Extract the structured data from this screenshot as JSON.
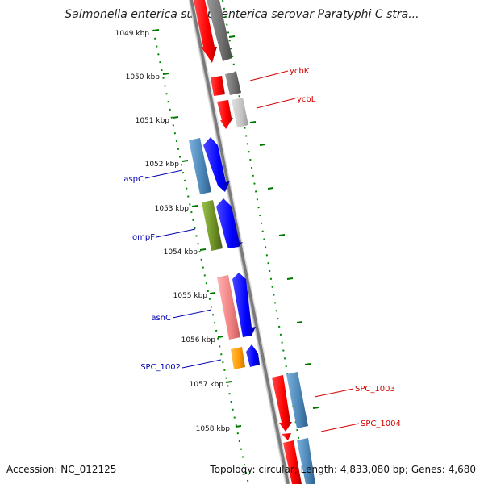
{
  "header": {
    "title": "Salmonella enterica subsp. enterica serovar Paratyphi C stra..."
  },
  "ticks": [
    "1049 kbp",
    "1050 kbp",
    "1051 kbp",
    "1052 kbp",
    "1053 kbp",
    "1054 kbp",
    "1055 kbp",
    "1056 kbp",
    "1057 kbp",
    "1058 kbp"
  ],
  "genes": {
    "ycbK": "ycbK",
    "ycbL": "ycbL",
    "aspC": "aspC",
    "ompF": "ompF",
    "asnC": "asnC",
    "SPC_1002": "SPC_1002",
    "SPC_1003": "SPC_1003",
    "SPC_1004": "SPC_1004"
  },
  "footer": {
    "accession": "Accession: NC_012125",
    "summary": "Topology: circular; Length: 4,833,080 bp; Genes: 4,680"
  },
  "colors": {
    "forward_cds": "#ff0000",
    "reverse_cds": "#0000ff",
    "feature_grey": "#777777",
    "feature_steelblue": "#4a86b8",
    "feature_olive": "#6b8e23",
    "feature_pink": "#f08080",
    "feature_orange": "#ff9900",
    "ruler_dots": "#008800",
    "label_red": "#d40000",
    "label_blue": "#0000b0"
  }
}
